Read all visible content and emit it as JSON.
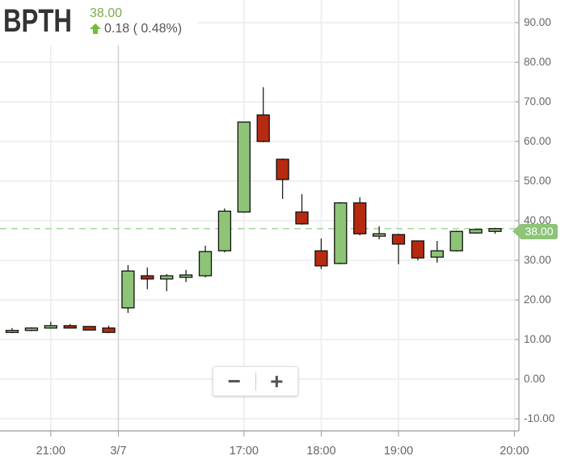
{
  "header": {
    "symbol": "BPTH",
    "price": "38.00",
    "change": "0.18 ( 0.48%)",
    "change_direction": "up",
    "arrow_icon": "arrow-up-icon"
  },
  "controls": {
    "zoom_out": "−",
    "zoom_in": "+"
  },
  "colors": {
    "up": "#8dc477",
    "down": "#b52a10",
    "price_text": "#7aab4a",
    "last_price_line": "#a8d5a0"
  },
  "chart_data": {
    "type": "candlestick",
    "last_price": 38.0,
    "last_price_label": "38.00",
    "ylim": [
      -12,
      92
    ],
    "y_ticks": [
      -10,
      0,
      10,
      20,
      30,
      40,
      50,
      60,
      70,
      80,
      90
    ],
    "y_tick_labels": [
      "-10.00",
      "0.00",
      "10.00",
      "20.00",
      "30.00",
      "40.00",
      "50.00",
      "60.00",
      "70.00",
      "80.00",
      "90.00"
    ],
    "x_ticks": [
      {
        "label": "21:00",
        "at_candle": 2
      },
      {
        "label": "3/7",
        "at_candle": 5.5
      },
      {
        "label": "17:00",
        "at_candle": 12
      },
      {
        "label": "18:00",
        "at_candle": 16
      },
      {
        "label": "19:00",
        "at_candle": 20
      },
      {
        "label": "20:00",
        "at_candle": 26
      }
    ],
    "grid": true,
    "candles": [
      {
        "o": 11.8,
        "h": 12.9,
        "l": 11.6,
        "c": 12.3
      },
      {
        "o": 12.3,
        "h": 13.1,
        "l": 12.1,
        "c": 12.9
      },
      {
        "o": 12.9,
        "h": 14.5,
        "l": 12.9,
        "c": 13.5
      },
      {
        "o": 13.5,
        "h": 13.9,
        "l": 12.9,
        "c": 12.9
      },
      {
        "o": 13.3,
        "h": 13.3,
        "l": 12.4,
        "c": 12.4
      },
      {
        "o": 12.9,
        "h": 13.5,
        "l": 11.6,
        "c": 11.8
      },
      {
        "o": 18.0,
        "h": 28.8,
        "l": 16.7,
        "c": 27.3
      },
      {
        "o": 26.1,
        "h": 28.2,
        "l": 22.7,
        "c": 25.3
      },
      {
        "o": 25.3,
        "h": 26.5,
        "l": 22.2,
        "c": 26.1
      },
      {
        "o": 25.7,
        "h": 27.6,
        "l": 24.5,
        "c": 26.3
      },
      {
        "o": 26.1,
        "h": 33.7,
        "l": 25.7,
        "c": 32.2
      },
      {
        "o": 32.4,
        "h": 43.1,
        "l": 32.0,
        "c": 42.4
      },
      {
        "o": 42.2,
        "h": 65.0,
        "l": 42.0,
        "c": 64.9
      },
      {
        "o": 66.7,
        "h": 73.7,
        "l": 59.8,
        "c": 60.0
      },
      {
        "o": 55.5,
        "h": 55.7,
        "l": 45.5,
        "c": 50.4
      },
      {
        "o": 42.2,
        "h": 46.7,
        "l": 39.0,
        "c": 39.2
      },
      {
        "o": 32.4,
        "h": 35.5,
        "l": 27.8,
        "c": 28.6
      },
      {
        "o": 29.2,
        "h": 44.7,
        "l": 29.0,
        "c": 44.5
      },
      {
        "o": 44.5,
        "h": 45.9,
        "l": 36.3,
        "c": 36.7
      },
      {
        "o": 36.1,
        "h": 38.6,
        "l": 35.3,
        "c": 36.7
      },
      {
        "o": 36.5,
        "h": 36.7,
        "l": 29.0,
        "c": 34.1
      },
      {
        "o": 34.9,
        "h": 35.0,
        "l": 30.0,
        "c": 30.6
      },
      {
        "o": 30.8,
        "h": 34.9,
        "l": 29.4,
        "c": 32.4
      },
      {
        "o": 32.4,
        "h": 37.5,
        "l": 32.2,
        "c": 37.3
      },
      {
        "o": 36.9,
        "h": 38.0,
        "l": 36.7,
        "c": 37.8
      },
      {
        "o": 37.3,
        "h": 38.2,
        "l": 36.7,
        "c": 38.0
      }
    ]
  }
}
